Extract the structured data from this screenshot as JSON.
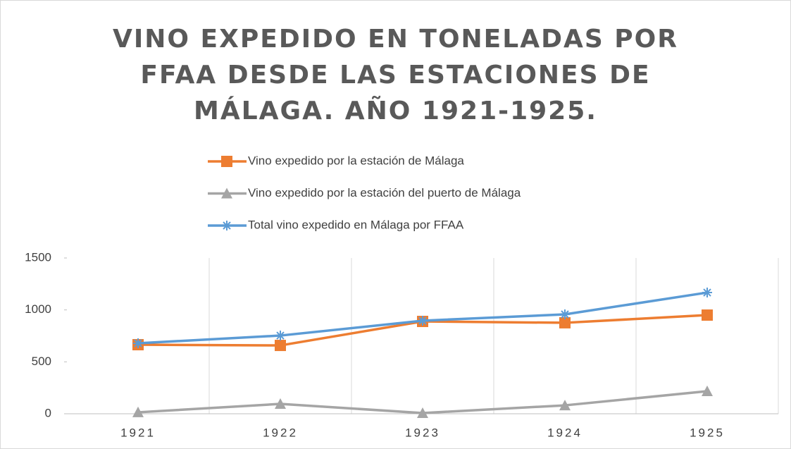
{
  "chart_data": {
    "type": "line",
    "title": "VINO EXPEDIDO EN TONELADAS POR FFAA DESDE LAS ESTACIONES DE MÁLAGA. AÑO 1921-1925.",
    "categories": [
      "1921",
      "1922",
      "1923",
      "1924",
      "1925"
    ],
    "series": [
      {
        "name": "Vino expedido por la estación de Málaga",
        "color": "#ED7D31",
        "marker": "square",
        "values": [
          665,
          658,
          889,
          876,
          950
        ]
      },
      {
        "name": "Vino expedido por la estación del puerto de Málaga",
        "color": "#A5A5A5",
        "marker": "triangle",
        "values": [
          14,
          95,
          7,
          81,
          217
        ]
      },
      {
        "name": "Total vino expedido en Málaga por FFAA",
        "color": "#5B9BD5",
        "marker": "star",
        "values": [
          679,
          753,
          896,
          957,
          1167
        ]
      }
    ],
    "ylim": [
      0,
      1500
    ],
    "yticks": [
      0,
      500,
      1000,
      1500
    ],
    "grid": true,
    "legend": "top"
  }
}
